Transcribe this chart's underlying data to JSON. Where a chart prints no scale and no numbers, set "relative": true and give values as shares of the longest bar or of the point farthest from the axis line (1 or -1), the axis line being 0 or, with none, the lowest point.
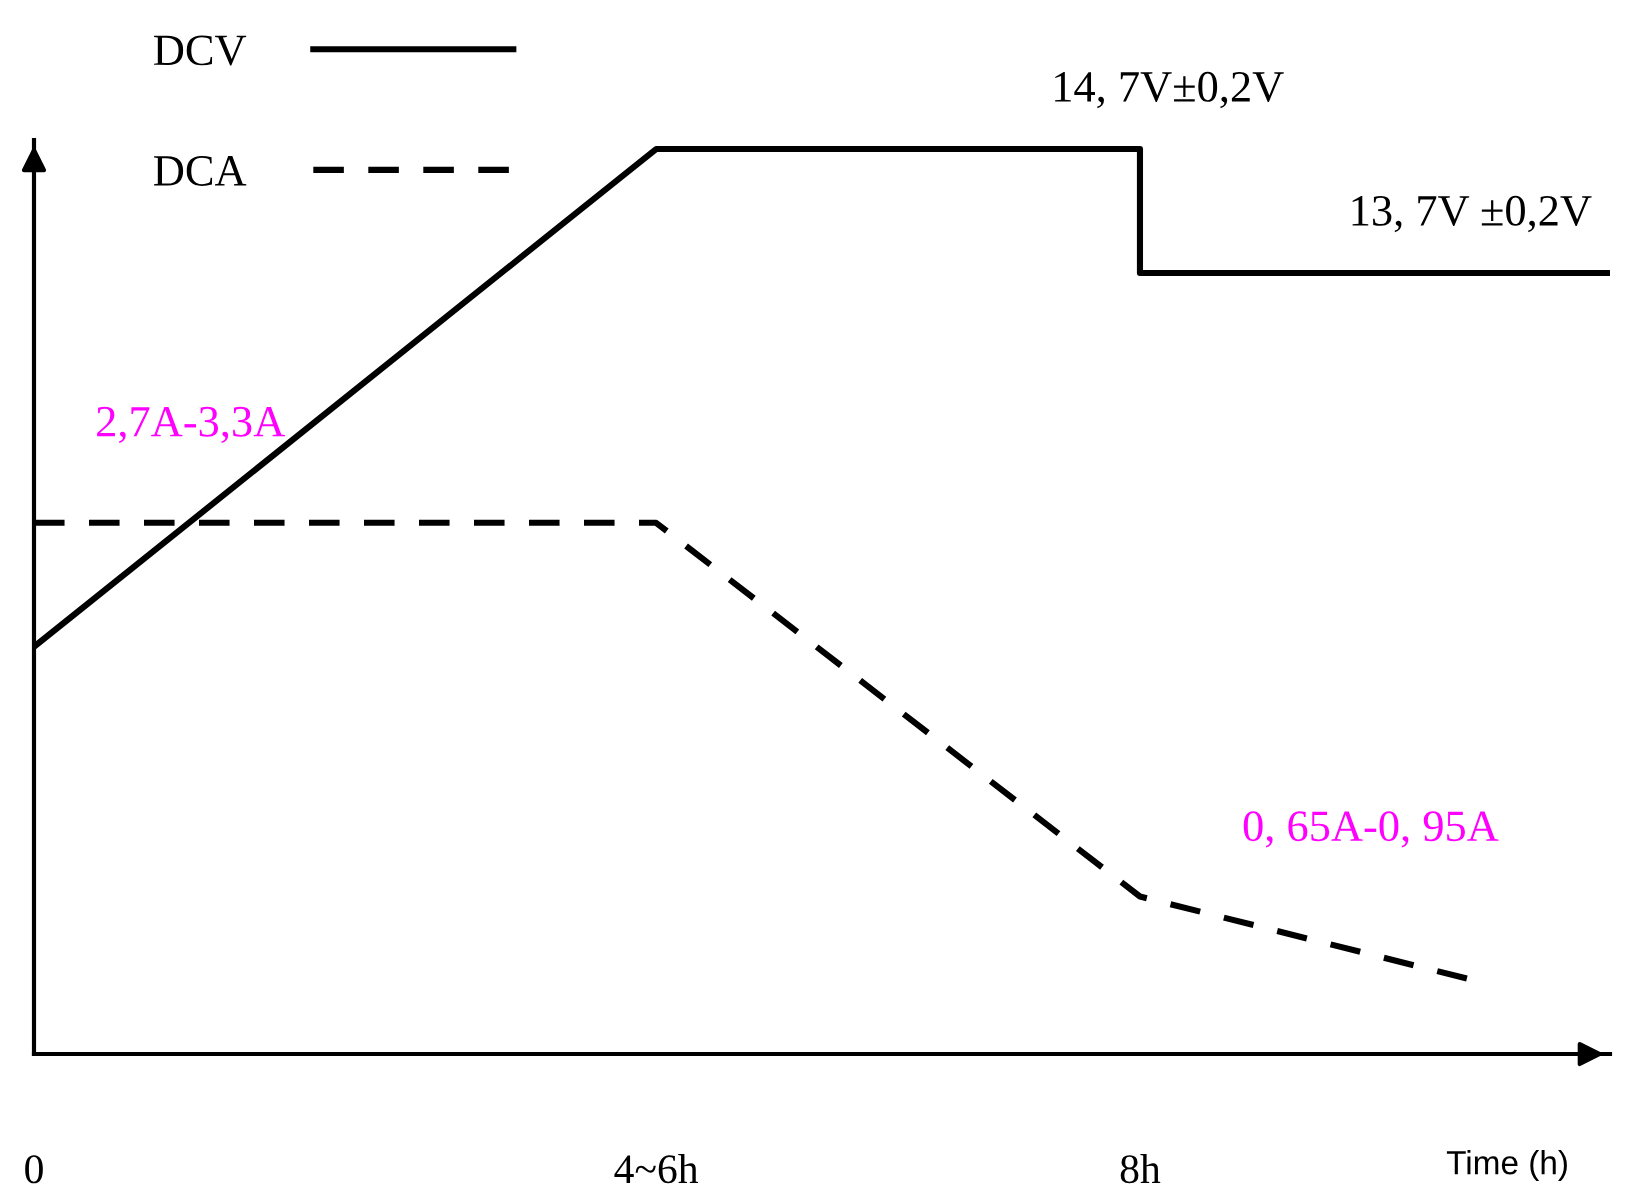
{
  "chart_data": {
    "type": "line",
    "relative": true,
    "xlabel": "Time (h)",
    "xlim": [
      0,
      11.4
    ],
    "xticks": [
      0,
      {
        "value": 4.5,
        "label": "4~6h"
      },
      {
        "value": 8,
        "label": "8h"
      }
    ],
    "series": [
      {
        "name": "DCV",
        "color": "#000000",
        "line_style": "solid",
        "x": [
          0,
          4.5,
          8,
          8,
          11.4
        ],
        "values": [
          0.45,
          1,
          1,
          0.863,
          0.863
        ]
      },
      {
        "name": "DCA",
        "color": "#000000",
        "line_style": "dashed",
        "x": [
          0,
          4.5,
          8,
          10.4
        ],
        "values": [
          0.587,
          0.587,
          0.174,
          0.082
        ]
      }
    ],
    "annotations": [
      {
        "text": "14, 7V±0,2V",
        "x": 8,
        "y": 1
      },
      {
        "text": "13, 7V ±0,2V",
        "x": 10.39,
        "y": 0.863
      },
      {
        "text": "2,7A-3,3A",
        "x": 1.13,
        "y": 0.587
      },
      "0, 65A-0, 95A"
    ],
    "legend": "top left",
    "grid": false,
    "marker": "none"
  }
}
